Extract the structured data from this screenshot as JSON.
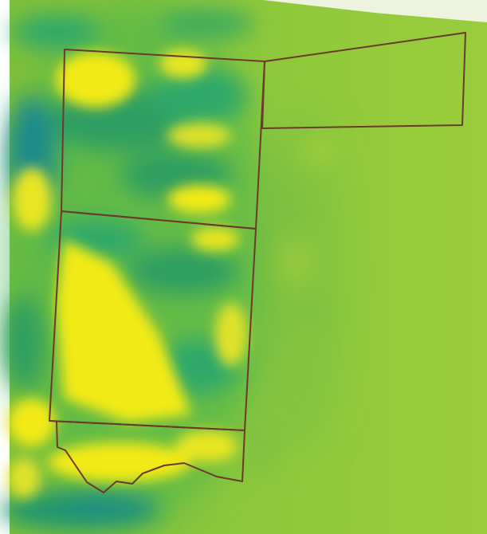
{
  "map": {
    "layer": "raster",
    "color_ramp": [
      "#1b8a8c",
      "#2fa86a",
      "#49b54e",
      "#8cc63f",
      "#a5cf3d",
      "#f2ea12"
    ],
    "background_color": "#ffffff",
    "corner_tint": "#eef3df",
    "boundary_color": "#6b3a2a",
    "parcel_count": 4
  }
}
